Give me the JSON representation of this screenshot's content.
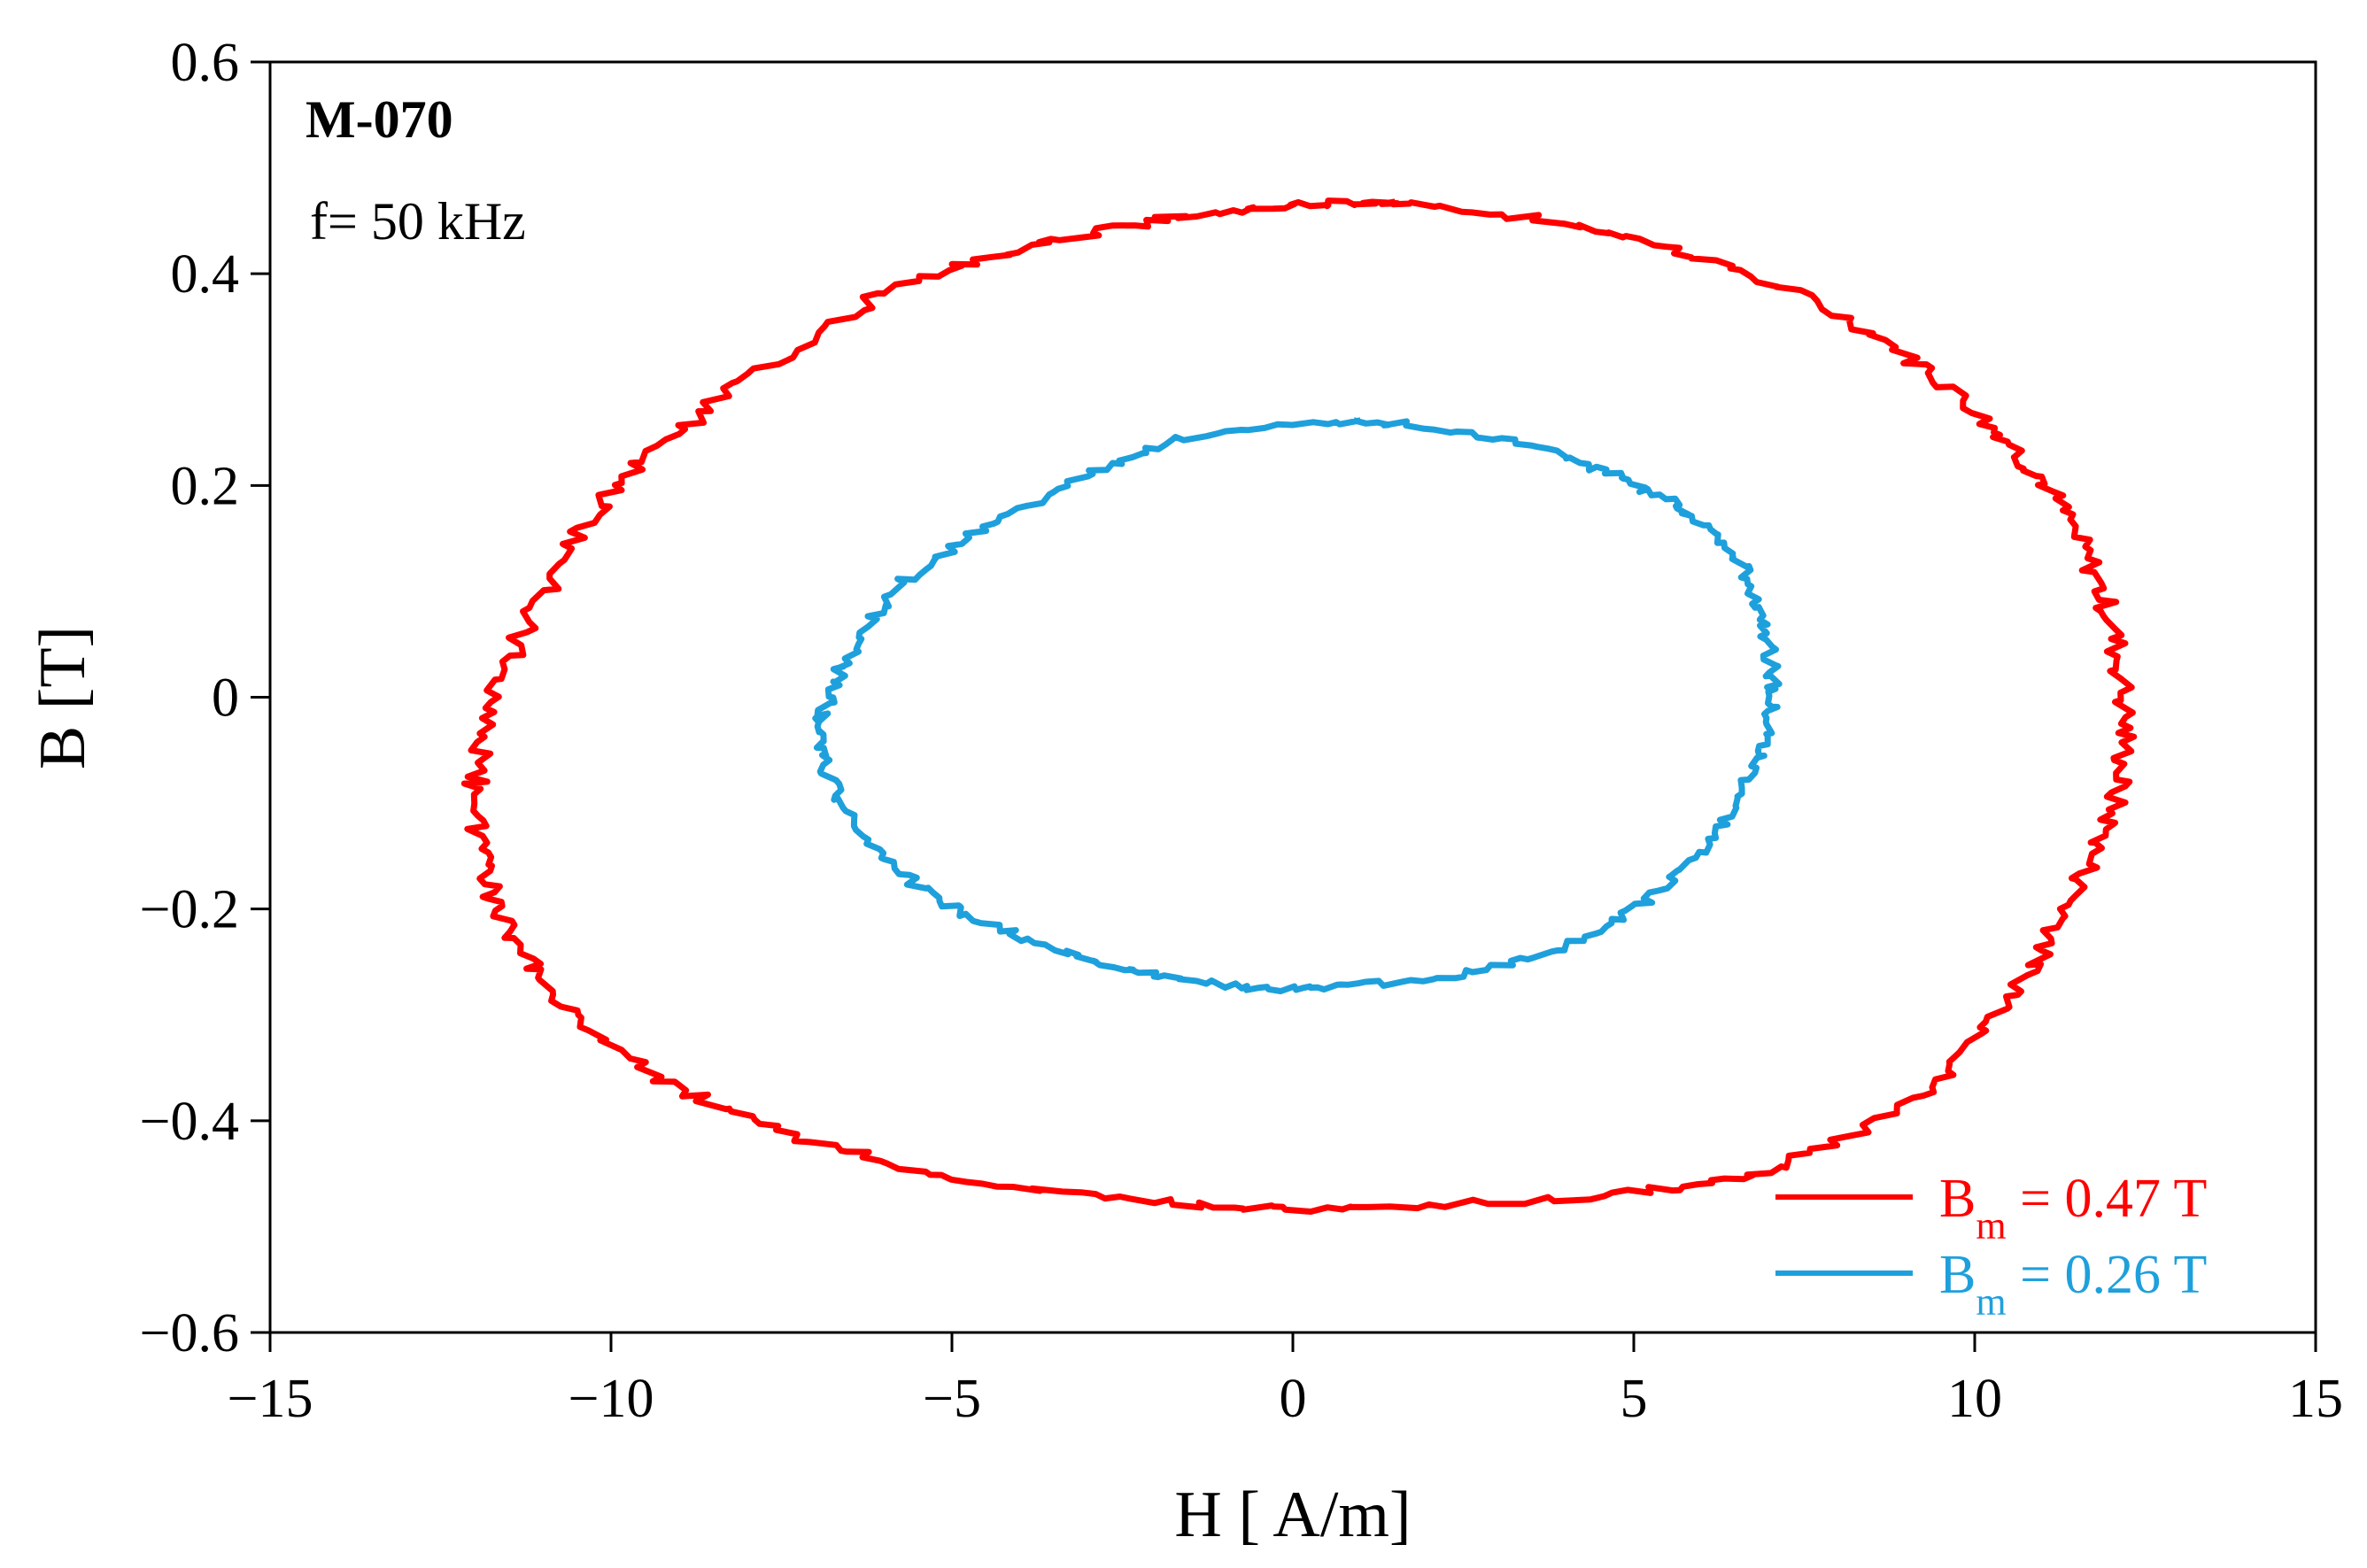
{
  "chart_data": {
    "type": "line",
    "xlabel": "H [ A/m]",
    "ylabel": "B [T]",
    "xlim": [
      -15,
      15
    ],
    "ylim": [
      -0.6,
      0.6
    ],
    "x_ticks": [
      -15,
      -10,
      -5,
      0,
      5,
      10,
      15
    ],
    "x_tick_labels": [
      "−15",
      "−10",
      "−5",
      "0",
      "5",
      "10",
      "15"
    ],
    "y_ticks": [
      0.6,
      0.4,
      0.2,
      0,
      -0.2,
      -0.4,
      -0.6
    ],
    "y_tick_labels": [
      "0.6",
      "0.4",
      "0.2",
      "0",
      "−0.2",
      "−0.4",
      "−0.6"
    ],
    "grid": false,
    "legend_position": "bottom-right",
    "annotations": {
      "material": "M-070",
      "frequency": "f= 50 kHz"
    },
    "series": [
      {
        "legend_main": "B",
        "legend_sub": "m",
        "legend_rest": " = 0.47 T",
        "color": "#ff0000",
        "points": [
          [
            1.5,
            0.468
          ],
          [
            4.0,
            0.447
          ],
          [
            6.0,
            0.415
          ],
          [
            8.0,
            0.361
          ],
          [
            9.5,
            0.3
          ],
          [
            10.5,
            0.24
          ],
          [
            11.2,
            0.185
          ],
          [
            11.8,
            0.11
          ],
          [
            12.1,
            0.04
          ],
          [
            12.2,
            -0.04
          ],
          [
            12.0,
            -0.11
          ],
          [
            11.5,
            -0.18
          ],
          [
            10.9,
            -0.25
          ],
          [
            10.1,
            -0.32
          ],
          [
            9.0,
            -0.385
          ],
          [
            7.0,
            -0.445
          ],
          [
            5.0,
            -0.468
          ],
          [
            1.0,
            -0.482
          ],
          [
            -1.5,
            -0.479
          ],
          [
            -4.5,
            -0.458
          ],
          [
            -7.0,
            -0.42
          ],
          [
            -9.0,
            -0.37
          ],
          [
            -10.5,
            -0.3
          ],
          [
            -11.4,
            -0.23
          ],
          [
            -11.8,
            -0.17
          ],
          [
            -12.0,
            -0.1
          ],
          [
            -11.8,
            -0.02
          ],
          [
            -11.3,
            0.06
          ],
          [
            -10.5,
            0.15
          ],
          [
            -9.5,
            0.225
          ],
          [
            -8.0,
            0.3
          ],
          [
            -6.0,
            0.38
          ],
          [
            -4.0,
            0.423
          ],
          [
            -2.0,
            0.45
          ],
          [
            0.0,
            0.465
          ],
          [
            1.5,
            0.468
          ]
        ]
      },
      {
        "legend_main": "B",
        "legend_sub": "m",
        "legend_rest": " = 0.26 T",
        "color": "#1ea0dc",
        "points": [
          [
            1.0,
            0.262
          ],
          [
            3.0,
            0.245
          ],
          [
            4.5,
            0.215
          ],
          [
            5.5,
            0.185
          ],
          [
            6.3,
            0.145
          ],
          [
            6.8,
            0.095
          ],
          [
            7.0,
            0.04
          ],
          [
            7.0,
            -0.01
          ],
          [
            6.8,
            -0.06
          ],
          [
            6.3,
            -0.12
          ],
          [
            5.5,
            -0.175
          ],
          [
            4.5,
            -0.22
          ],
          [
            3.0,
            -0.255
          ],
          [
            1.0,
            -0.272
          ],
          [
            -0.5,
            -0.275
          ],
          [
            -2.0,
            -0.262
          ],
          [
            -3.5,
            -0.238
          ],
          [
            -5.0,
            -0.198
          ],
          [
            -6.0,
            -0.15
          ],
          [
            -6.7,
            -0.09
          ],
          [
            -6.9,
            -0.04
          ],
          [
            -6.8,
            0.0
          ],
          [
            -6.4,
            0.05
          ],
          [
            -5.7,
            0.11
          ],
          [
            -4.5,
            0.16
          ],
          [
            -3.0,
            0.21
          ],
          [
            -1.5,
            0.245
          ],
          [
            1.0,
            0.262
          ]
        ]
      }
    ]
  }
}
